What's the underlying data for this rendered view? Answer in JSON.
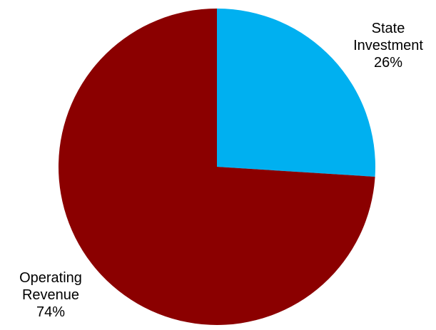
{
  "chart_data": {
    "type": "pie",
    "title": "",
    "start_angle_deg": 0,
    "direction": "clockwise",
    "slices": [
      {
        "label_lines": [
          "State",
          "Investment"
        ],
        "value": 26,
        "value_label": "26%",
        "color": "#00B0F0"
      },
      {
        "label_lines": [
          "Operating",
          "Revenue"
        ],
        "value": 74,
        "value_label": "74%",
        "color": "#8B0000"
      }
    ]
  }
}
